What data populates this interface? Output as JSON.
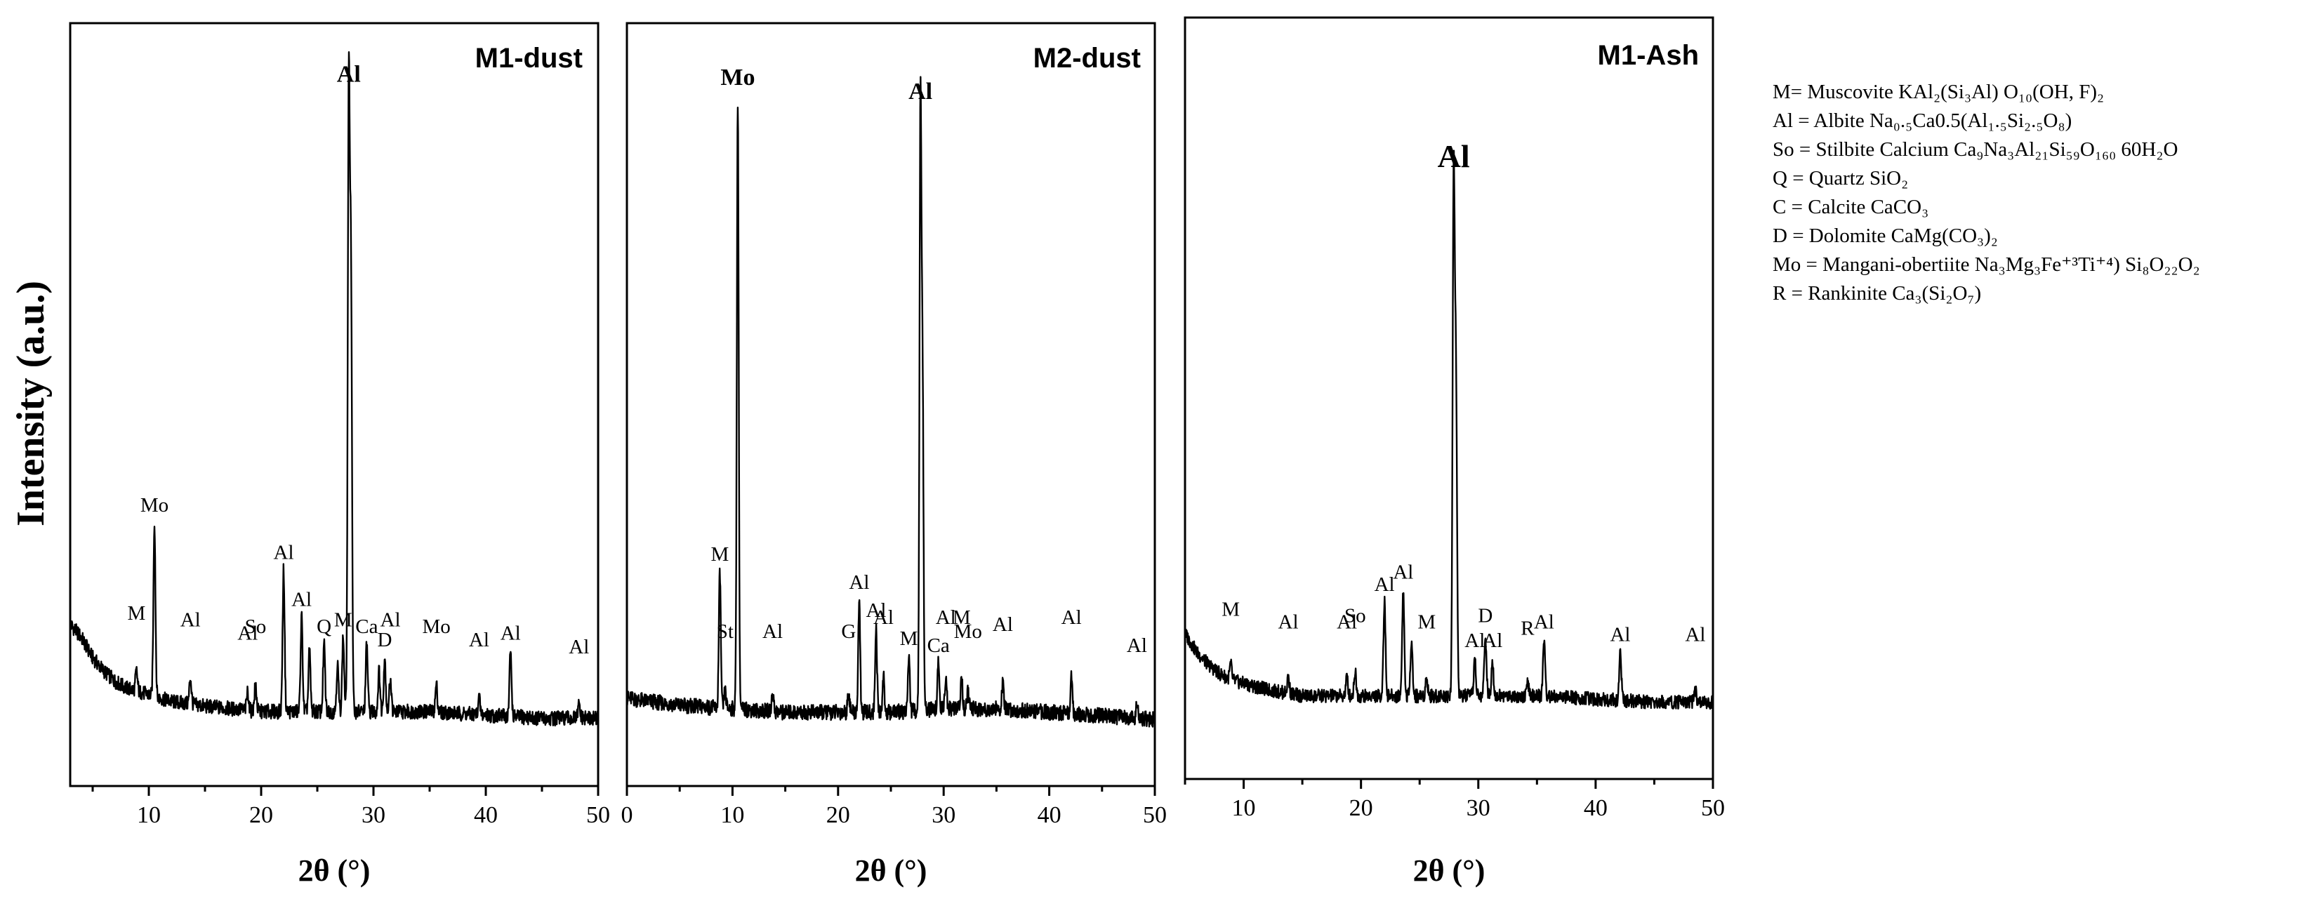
{
  "figure": {
    "ylabel": "Intensity (a.u.)",
    "xlabel": "2θ (°)"
  },
  "legend": [
    {
      "name": "legend-muscovite",
      "text": "M= Muscovite KAl₂(Si₃Al) O₁₀(OH, F)₂"
    },
    {
      "name": "legend-albite",
      "text": "Al = Albite Na₀.₅Ca0.5(Al₁.₅Si₂.₅O₈)"
    },
    {
      "name": "legend-stilbite",
      "text": "So = Stilbite Calcium Ca₉Na₃Al₂₁Si₅₉O₁₆₀ 60H₂O"
    },
    {
      "name": "legend-quartz",
      "text": "Q = Quartz SiO₂"
    },
    {
      "name": "legend-calcite",
      "text": "C = Calcite CaCO₃"
    },
    {
      "name": "legend-dolomite",
      "text": "D = Dolomite CaMg(CO₃)₂"
    },
    {
      "name": "legend-mangani-obertiite",
      "text": "Mo = Mangani-obertiite   Na₃Mg₃Fe⁺³Ti⁺⁴) Si₈O₂₂O₂"
    },
    {
      "name": "legend-rankinite",
      "text": "R = Rankinite   Ca₃(Si₂O₇)"
    }
  ],
  "chart_data": [
    {
      "type": "line",
      "title": "M1-dust",
      "xlabel": "2θ (°)",
      "ylabel": "Intensity (a.u.)",
      "xlim": [
        3,
        50
      ],
      "ylim": [
        0,
        100
      ],
      "xticks": [
        10,
        20,
        30,
        40,
        50
      ],
      "baseline": [
        [
          3,
          18
        ],
        [
          4,
          16
        ],
        [
          5,
          13
        ],
        [
          6,
          11
        ],
        [
          7,
          9.5
        ],
        [
          8,
          8.5
        ],
        [
          10,
          7.5
        ],
        [
          12,
          6.5
        ],
        [
          15,
          5.8
        ],
        [
          20,
          5
        ],
        [
          25,
          5
        ],
        [
          30,
          5
        ],
        [
          35,
          5
        ],
        [
          40,
          4.5
        ],
        [
          45,
          4
        ],
        [
          50,
          4
        ]
      ],
      "peaks": [
        {
          "x": 8.9,
          "y": 11,
          "label": "M"
        },
        {
          "x": 10.5,
          "y": 33,
          "label": "Mo"
        },
        {
          "x": 13.7,
          "y": 10,
          "label": "Al"
        },
        {
          "x": 18.8,
          "y": 8,
          "label": "Al"
        },
        {
          "x": 19.5,
          "y": 9,
          "label": "So"
        },
        {
          "x": 22.0,
          "y": 26,
          "label": "Al"
        },
        {
          "x": 23.6,
          "y": 19,
          "label": "Al"
        },
        {
          "x": 24.3,
          "y": 14,
          "label": ""
        },
        {
          "x": 25.6,
          "y": 15,
          "label": "Q"
        },
        {
          "x": 26.8,
          "y": 12,
          "label": ""
        },
        {
          "x": 27.3,
          "y": 16,
          "label": "M"
        },
        {
          "x": 27.8,
          "y": 96,
          "label": "Al"
        },
        {
          "x": 28.0,
          "y": 68,
          "label": ""
        },
        {
          "x": 29.4,
          "y": 15,
          "label": "Ca"
        },
        {
          "x": 30.5,
          "y": 11,
          "label": ""
        },
        {
          "x": 31.0,
          "y": 13,
          "label": "D"
        },
        {
          "x": 31.5,
          "y": 10,
          "label": "Al"
        },
        {
          "x": 35.6,
          "y": 9,
          "label": "Mo"
        },
        {
          "x": 39.4,
          "y": 7,
          "label": "Al"
        },
        {
          "x": 42.2,
          "y": 14,
          "label": "Al"
        },
        {
          "x": 48.3,
          "y": 6,
          "label": "Al"
        }
      ]
    },
    {
      "type": "line",
      "title": "M2-dust",
      "xlabel": "2θ (°)",
      "xlim": [
        0,
        50
      ],
      "ylim": [
        0,
        100
      ],
      "xticks": [
        0,
        10,
        20,
        30,
        40,
        50
      ],
      "baseline": [
        [
          0,
          7
        ],
        [
          5,
          6
        ],
        [
          10,
          5.5
        ],
        [
          15,
          5
        ],
        [
          20,
          5
        ],
        [
          25,
          5
        ],
        [
          30,
          5.5
        ],
        [
          35,
          5.5
        ],
        [
          40,
          5
        ],
        [
          45,
          4.5
        ],
        [
          50,
          4
        ]
      ],
      "peaks": [
        {
          "x": 8.8,
          "y": 25,
          "label": "M"
        },
        {
          "x": 9.3,
          "y": 8,
          "label": "St"
        },
        {
          "x": 10.5,
          "y": 92,
          "label": "Mo"
        },
        {
          "x": 13.8,
          "y": 8,
          "label": "Al"
        },
        {
          "x": 21.0,
          "y": 8,
          "label": "G"
        },
        {
          "x": 22.0,
          "y": 21,
          "label": "Al"
        },
        {
          "x": 23.6,
          "y": 17,
          "label": "Al"
        },
        {
          "x": 24.3,
          "y": 10,
          "label": "Al"
        },
        {
          "x": 26.7,
          "y": 13,
          "label": "M"
        },
        {
          "x": 27.8,
          "y": 90,
          "label": "Al"
        },
        {
          "x": 28.0,
          "y": 52,
          "label": ""
        },
        {
          "x": 29.5,
          "y": 12,
          "label": "Ca"
        },
        {
          "x": 30.2,
          "y": 10,
          "label": "Al"
        },
        {
          "x": 31.7,
          "y": 10,
          "label": "M"
        },
        {
          "x": 32.3,
          "y": 8,
          "label": "Mo"
        },
        {
          "x": 35.6,
          "y": 9,
          "label": "Al"
        },
        {
          "x": 42.1,
          "y": 10,
          "label": "Al"
        },
        {
          "x": 48.3,
          "y": 6,
          "label": "Al"
        }
      ]
    },
    {
      "type": "line",
      "title": "M1-Ash",
      "xlabel": "2θ (°)",
      "xlim": [
        5,
        50
      ],
      "ylim": [
        0,
        100
      ],
      "xticks": [
        10,
        20,
        30,
        40,
        50
      ],
      "baseline": [
        [
          5,
          16
        ],
        [
          6,
          13
        ],
        [
          7,
          11
        ],
        [
          8,
          9.5
        ],
        [
          9,
          8.5
        ],
        [
          10,
          8
        ],
        [
          12,
          7
        ],
        [
          15,
          6
        ],
        [
          20,
          6
        ],
        [
          25,
          6
        ],
        [
          30,
          6
        ],
        [
          35,
          6
        ],
        [
          40,
          5.5
        ],
        [
          45,
          5
        ],
        [
          50,
          5
        ]
      ],
      "peaks": [
        {
          "x": 8.9,
          "y": 11,
          "label": "M"
        },
        {
          "x": 13.8,
          "y": 9,
          "label": "Al"
        },
        {
          "x": 18.8,
          "y": 9,
          "label": "Al"
        },
        {
          "x": 19.5,
          "y": 10,
          "label": "So"
        },
        {
          "x": 22.0,
          "y": 21,
          "label": "Al"
        },
        {
          "x": 23.6,
          "y": 23,
          "label": "Al"
        },
        {
          "x": 24.3,
          "y": 15,
          "label": ""
        },
        {
          "x": 25.6,
          "y": 9,
          "label": "M"
        },
        {
          "x": 27.9,
          "y": 88,
          "label": "Al"
        },
        {
          "x": 28.1,
          "y": 55,
          "label": ""
        },
        {
          "x": 29.7,
          "y": 12,
          "label": "Al"
        },
        {
          "x": 30.6,
          "y": 16,
          "label": "D"
        },
        {
          "x": 31.2,
          "y": 12,
          "label": "Al"
        },
        {
          "x": 34.2,
          "y": 8,
          "label": "R"
        },
        {
          "x": 35.6,
          "y": 15,
          "label": "Al"
        },
        {
          "x": 42.1,
          "y": 13,
          "label": "Al"
        },
        {
          "x": 48.5,
          "y": 7,
          "label": "Al"
        }
      ]
    }
  ]
}
